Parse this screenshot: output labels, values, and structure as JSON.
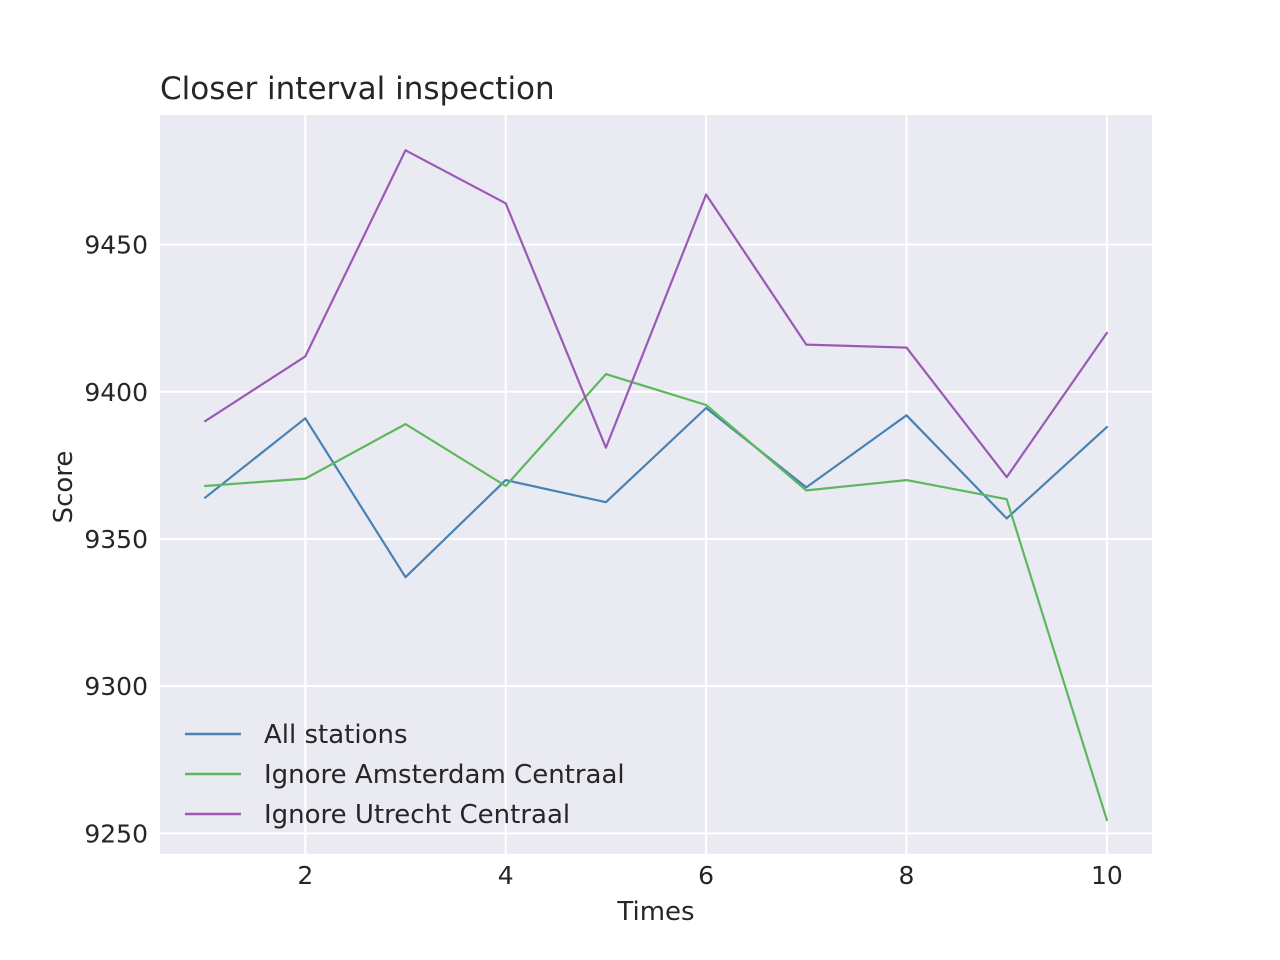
{
  "chart_data": {
    "type": "line",
    "title": "Closer interval inspection",
    "xlabel": "Times",
    "ylabel": "Score",
    "xlim": [
      0.55,
      10.45
    ],
    "ylim": [
      9243,
      9494
    ],
    "xticks": [
      2,
      4,
      6,
      8,
      10
    ],
    "yticks": [
      9250,
      9300,
      9350,
      9400,
      9450
    ],
    "grid": true,
    "legend_position": "lower-left",
    "x": [
      1,
      2,
      3,
      4,
      5,
      6,
      7,
      8,
      9,
      10
    ],
    "series": [
      {
        "name": "All stations",
        "color": "#4682b4",
        "values": [
          9364,
          9391,
          9337,
          9370,
          9362.5,
          9394.5,
          9367.5,
          9392,
          9357,
          9388
        ]
      },
      {
        "name": "Ignore Amsterdam Centraal",
        "color": "#5cb85c",
        "values": [
          9368,
          9370.5,
          9389,
          9368,
          9406,
          9395.5,
          9366.5,
          9370,
          9363.5,
          9254.5
        ]
      },
      {
        "name": "Ignore Utrecht Centraal",
        "color": "#9b59b6",
        "values": [
          9390,
          9412,
          9482,
          9464,
          9381,
          9467,
          9416,
          9415,
          9371,
          9420
        ]
      }
    ]
  }
}
